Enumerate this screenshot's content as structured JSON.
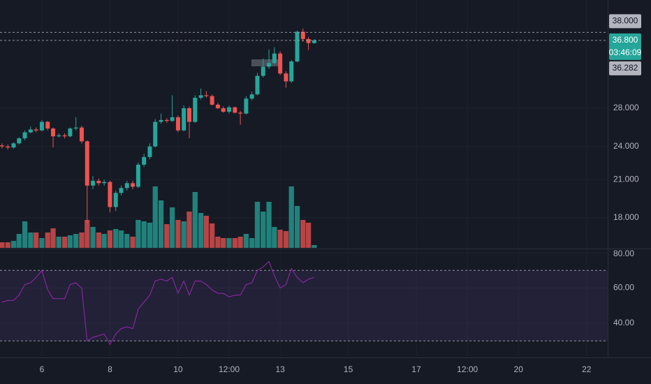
{
  "chart_data": {
    "type": "candlestick",
    "x": [
      4.83,
      5,
      5.17,
      5.33,
      5.5,
      5.67,
      5.83,
      6,
      6.17,
      6.33,
      6.5,
      6.67,
      6.83,
      7,
      7.17,
      7.33,
      7.5,
      7.67,
      7.83,
      8,
      8.17,
      8.33,
      8.5,
      8.67,
      8.83,
      9,
      9.17,
      9.33,
      9.5,
      9.67,
      9.83,
      10,
      10.17,
      10.33,
      10.5,
      10.67,
      10.83,
      11,
      11.17,
      11.33,
      11.5,
      11.67,
      11.83,
      12,
      12.17,
      12.33,
      12.5,
      12.67,
      12.83,
      13,
      13.17,
      13.33,
      13.5,
      13.67,
      13.83,
      14
    ],
    "open": [
      24.1,
      24.0,
      23.9,
      24.3,
      24.8,
      25.4,
      25.7,
      25.6,
      26.5,
      25.8,
      25.0,
      25.1,
      25.0,
      25.8,
      25.9,
      24.5,
      20.5,
      20.9,
      20.7,
      20.8,
      18.8,
      19.9,
      20.3,
      20.7,
      20.4,
      22.3,
      23.0,
      24.0,
      26.5,
      26.7,
      26.6,
      27.0,
      25.6,
      28.0,
      26.5,
      29.2,
      29.5,
      29.4,
      28.4,
      28.0,
      27.6,
      28.1,
      27.5,
      27.4,
      29.1,
      29.6,
      31.9,
      33.1,
      33.6,
      34.9,
      32.2,
      31.2,
      33.8,
      38.1,
      37.0,
      36.4
    ],
    "high": [
      24.3,
      24.2,
      24.4,
      24.9,
      25.6,
      26.0,
      25.9,
      26.7,
      26.6,
      25.9,
      25.3,
      25.3,
      25.9,
      27.0,
      26.1,
      24.6,
      21.3,
      21.1,
      21.0,
      20.9,
      20.1,
      20.5,
      20.9,
      20.9,
      22.5,
      23.3,
      24.3,
      26.8,
      27.4,
      26.9,
      29.5,
      27.2,
      28.3,
      28.2,
      29.5,
      30.3,
      30.0,
      29.6,
      28.6,
      28.2,
      28.3,
      28.2,
      27.7,
      29.4,
      29.9,
      32.3,
      34.2,
      35.5,
      35.8,
      35.2,
      32.5,
      34.0,
      38.3,
      38.6,
      37.3,
      37.0
    ],
    "low": [
      23.8,
      23.7,
      23.8,
      24.2,
      24.6,
      25.3,
      25.4,
      25.5,
      25.6,
      23.9,
      24.9,
      24.8,
      24.9,
      25.6,
      24.3,
      17.6,
      20.2,
      20.5,
      20.5,
      18.4,
      18.5,
      19.7,
      20.1,
      20.2,
      20.3,
      22.1,
      22.8,
      23.9,
      26.3,
      26.4,
      26.5,
      25.4,
      25.5,
      24.8,
      26.4,
      29.0,
      29.2,
      28.3,
      27.9,
      27.5,
      27.4,
      27.4,
      26.2,
      27.3,
      28.9,
      29.5,
      31.7,
      32.8,
      33.4,
      32.0,
      30.4,
      31.0,
      33.7,
      36.6,
      35.4,
      36.3
    ],
    "close": [
      24.0,
      23.9,
      24.3,
      24.8,
      25.4,
      25.7,
      25.6,
      26.5,
      25.8,
      25.0,
      25.1,
      25.0,
      25.8,
      25.9,
      24.5,
      20.5,
      20.9,
      20.7,
      20.8,
      18.8,
      19.9,
      20.3,
      20.7,
      20.4,
      22.3,
      23.0,
      24.0,
      26.5,
      26.7,
      26.6,
      27.0,
      25.6,
      28.0,
      26.5,
      29.2,
      29.5,
      29.4,
      28.4,
      28.0,
      27.6,
      28.1,
      27.5,
      27.4,
      29.1,
      29.6,
      31.9,
      33.1,
      33.6,
      34.9,
      32.2,
      31.2,
      33.8,
      38.1,
      37.0,
      36.4,
      36.8
    ],
    "up_color": "#26a69a",
    "down_color": "#ef5350",
    "xlim": [
      4.77,
      22.62
    ],
    "xticks": [
      {
        "value": 6,
        "label": "6"
      },
      {
        "value": 8,
        "label": "8"
      },
      {
        "value": 10,
        "label": "10"
      },
      {
        "value": 11.5,
        "label": "12:00"
      },
      {
        "value": 13,
        "label": "13"
      },
      {
        "value": 15,
        "label": "15"
      },
      {
        "value": 17,
        "label": "17"
      },
      {
        "value": 18.5,
        "label": "12:00"
      },
      {
        "value": 20,
        "label": "20"
      },
      {
        "value": 22,
        "label": "22"
      }
    ],
    "ylim": [
      15.95,
      43.3
    ],
    "log_scale": true,
    "yticks": [
      {
        "value": 18,
        "label": "18.000"
      },
      {
        "value": 21,
        "label": "21.000"
      },
      {
        "value": 24,
        "label": "24.000"
      },
      {
        "value": 28,
        "label": "28.000"
      }
    ],
    "grid": true,
    "price_labels": [
      {
        "value": 38,
        "label": "38.000",
        "color": "#b2b5be",
        "line": true
      },
      {
        "value": 36.8,
        "label": "36.800",
        "color": "#26a69a",
        "line": true
      },
      {
        "value": 36.282,
        "label": "36.282",
        "color": "#b2b5be",
        "line": false
      }
    ],
    "countdown": "03:46:09",
    "volume": {
      "values": [
        8,
        8,
        10,
        20,
        38,
        22,
        22,
        14,
        22,
        28,
        16,
        16,
        18,
        20,
        22,
        40,
        30,
        22,
        20,
        25,
        27,
        25,
        20,
        16,
        40,
        38,
        36,
        88,
        68,
        34,
        58,
        40,
        38,
        52,
        80,
        50,
        46,
        35,
        16,
        14,
        14,
        14,
        16,
        20,
        14,
        66,
        52,
        66,
        30,
        26,
        24,
        88,
        60,
        40,
        36,
        4
      ],
      "vlim": [
        0,
        100
      ]
    },
    "rsi": {
      "values": [
        52,
        53,
        53,
        56,
        62,
        63,
        66,
        70,
        59,
        54,
        54,
        54,
        62,
        63,
        60,
        30,
        32,
        33,
        34,
        28,
        34,
        37,
        38,
        37,
        48,
        52,
        56,
        64,
        65,
        64,
        66,
        57,
        64,
        56,
        64,
        64,
        62,
        59,
        57,
        57,
        55,
        56,
        56,
        62,
        63,
        70,
        72,
        75,
        67,
        60,
        62,
        71,
        66,
        63,
        65,
        66
      ],
      "color": "#9c27b0",
      "ylim": [
        21.4,
        82
      ],
      "band": [
        30,
        70
      ],
      "yticks": [
        {
          "value": 40,
          "label": "40.00"
        },
        {
          "value": 60,
          "label": "60.00"
        },
        {
          "value": 80,
          "label": "80.00"
        }
      ]
    }
  }
}
